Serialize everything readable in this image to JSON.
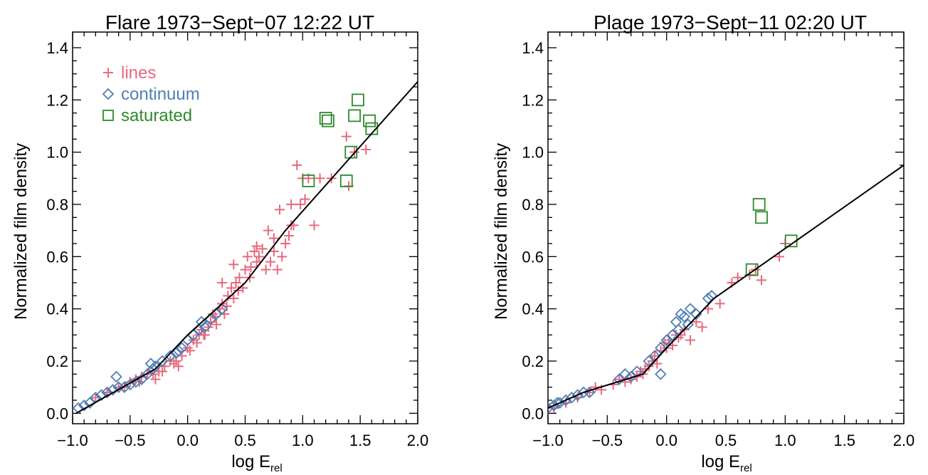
{
  "colors": {
    "lines": "#e8697d",
    "continuum": "#4f7fb5",
    "saturated": "#2e8b2e",
    "fit": "#000000"
  },
  "chart_data": [
    {
      "type": "scatter",
      "title": "Flare 1973−Sept−07 12:22 UT",
      "xlabel_main": "log E",
      "xlabel_sub": "rel",
      "ylabel": "Normalized film density",
      "xlim": [
        -1.0,
        2.0
      ],
      "ylim": [
        -0.04,
        1.46
      ],
      "xticks": [
        -1.0,
        -0.5,
        0.0,
        0.5,
        1.0,
        1.5,
        2.0
      ],
      "xtick_labels": [
        "−1.0",
        "−0.5",
        "0.0",
        "0.5",
        "1.0",
        "1.5",
        "2.0"
      ],
      "yticks": [
        0.0,
        0.2,
        0.4,
        0.6,
        0.8,
        1.0,
        1.2,
        1.4
      ],
      "ytick_labels": [
        "0.0",
        "0.2",
        "0.4",
        "0.6",
        "0.8",
        "1.0",
        "1.2",
        "1.4"
      ],
      "legend": {
        "placement": "top-left",
        "entries": [
          "lines",
          "continuum",
          "saturated"
        ]
      },
      "fit_line": {
        "x": [
          -0.97,
          -0.28,
          0.0,
          0.5,
          0.85,
          2.0
        ],
        "y": [
          0.0,
          0.17,
          0.3,
          0.5,
          0.7,
          1.27
        ]
      },
      "series": [
        {
          "name": "lines",
          "marker": "plus",
          "x": [
            -0.8,
            -0.7,
            -0.6,
            -0.5,
            -0.45,
            -0.4,
            -0.35,
            -0.3,
            -0.25,
            -0.2,
            -0.15,
            -0.1,
            -0.05,
            0.0,
            0.05,
            0.1,
            0.12,
            0.15,
            0.18,
            0.2,
            0.22,
            0.25,
            0.28,
            0.3,
            0.32,
            0.35,
            0.38,
            0.4,
            0.42,
            0.45,
            0.48,
            0.5,
            0.52,
            0.55,
            0.58,
            0.6,
            0.62,
            0.65,
            0.68,
            0.7,
            0.72,
            0.75,
            0.78,
            0.8,
            0.82,
            0.85,
            0.88,
            0.9,
            0.92,
            0.95,
            0.98,
            1.0,
            1.02,
            1.05,
            1.1,
            1.15,
            1.25,
            1.38,
            1.4,
            1.45,
            1.55,
            -0.55,
            -0.42,
            -0.28,
            -0.22,
            -0.12,
            -0.08,
            0.02,
            0.08,
            0.14,
            0.24,
            0.34,
            0.44,
            0.54,
            0.3,
            0.4,
            0.6,
            0.75,
            0.9
          ],
          "y": [
            0.06,
            0.08,
            0.1,
            0.12,
            0.13,
            0.14,
            0.15,
            0.15,
            0.16,
            0.18,
            0.2,
            0.2,
            0.22,
            0.25,
            0.28,
            0.3,
            0.32,
            0.3,
            0.33,
            0.35,
            0.38,
            0.34,
            0.4,
            0.42,
            0.38,
            0.45,
            0.48,
            0.44,
            0.5,
            0.52,
            0.48,
            0.55,
            0.6,
            0.56,
            0.62,
            0.58,
            0.6,
            0.63,
            0.55,
            0.7,
            0.58,
            0.62,
            0.55,
            0.78,
            0.6,
            0.65,
            0.68,
            0.72,
            0.72,
            0.95,
            0.8,
            0.9,
            0.82,
            0.9,
            0.72,
            0.9,
            0.9,
            1.06,
            0.87,
            1.0,
            1.01,
            0.1,
            0.12,
            0.13,
            0.16,
            0.19,
            0.18,
            0.24,
            0.27,
            0.3,
            0.37,
            0.41,
            0.47,
            0.52,
            0.5,
            0.57,
            0.64,
            0.67,
            0.8
          ]
        },
        {
          "name": "continuum",
          "marker": "diamond",
          "x": [
            -0.95,
            -0.9,
            -0.85,
            -0.8,
            -0.75,
            -0.7,
            -0.65,
            -0.6,
            -0.55,
            -0.5,
            -0.45,
            -0.4,
            -0.35,
            -0.3,
            -0.28,
            -0.22,
            -0.15,
            -0.1,
            -0.05,
            0.0,
            0.05,
            0.1,
            0.15,
            0.2,
            0.25,
            0.3,
            -0.62,
            -0.32,
            -0.08,
            0.12
          ],
          "y": [
            0.02,
            0.03,
            0.04,
            0.06,
            0.07,
            0.08,
            0.09,
            0.1,
            0.1,
            0.11,
            0.12,
            0.13,
            0.15,
            0.17,
            0.18,
            0.2,
            0.22,
            0.23,
            0.25,
            0.28,
            0.3,
            0.32,
            0.33,
            0.36,
            0.38,
            0.4,
            0.14,
            0.19,
            0.24,
            0.35
          ]
        },
        {
          "name": "saturated",
          "marker": "square",
          "x": [
            1.05,
            1.2,
            1.22,
            1.38,
            1.42,
            1.45,
            1.48,
            1.58,
            1.6
          ],
          "y": [
            0.89,
            1.13,
            1.12,
            0.89,
            1.0,
            1.14,
            1.2,
            1.12,
            1.09
          ]
        }
      ]
    },
    {
      "type": "scatter",
      "title": "Plage 1973−Sept−11 02:20 UT",
      "xlabel_main": "log E",
      "xlabel_sub": "rel",
      "ylabel": "Normalized film density",
      "xlim": [
        -1.0,
        2.0
      ],
      "ylim": [
        -0.04,
        1.46
      ],
      "xticks": [
        -1.0,
        -0.5,
        0.0,
        0.5,
        1.0,
        1.5,
        2.0
      ],
      "xtick_labels": [
        "−1.0",
        "−0.5",
        "0.0",
        "0.5",
        "1.0",
        "1.5",
        "2.0"
      ],
      "yticks": [
        0.0,
        0.2,
        0.4,
        0.6,
        0.8,
        1.0,
        1.2,
        1.4
      ],
      "ytick_labels": [
        "0.0",
        "0.2",
        "0.4",
        "0.6",
        "0.8",
        "1.0",
        "1.2",
        "1.4"
      ],
      "legend": null,
      "fit_line": {
        "x": [
          -1.0,
          -0.7,
          -0.2,
          0.0,
          0.4,
          2.0
        ],
        "y": [
          0.02,
          0.08,
          0.15,
          0.25,
          0.44,
          0.95
        ]
      },
      "series": [
        {
          "name": "lines",
          "marker": "plus",
          "x": [
            -0.95,
            -0.85,
            -0.75,
            -0.65,
            -0.55,
            -0.45,
            -0.35,
            -0.3,
            -0.25,
            -0.2,
            -0.18,
            -0.15,
            -0.12,
            -0.1,
            -0.08,
            -0.05,
            0.0,
            0.02,
            0.05,
            0.08,
            0.1,
            0.15,
            0.2,
            0.25,
            0.3,
            0.35,
            0.45,
            0.55,
            0.6,
            0.7,
            0.75,
            0.8,
            0.95,
            1.0,
            -0.6,
            -0.4,
            -0.22,
            -0.02,
            0.12
          ],
          "y": [
            0.02,
            0.04,
            0.06,
            0.08,
            0.09,
            0.11,
            0.12,
            0.13,
            0.14,
            0.15,
            0.17,
            0.18,
            0.2,
            0.22,
            0.19,
            0.24,
            0.25,
            0.28,
            0.26,
            0.3,
            0.29,
            0.32,
            0.28,
            0.35,
            0.33,
            0.4,
            0.42,
            0.5,
            0.52,
            0.53,
            0.55,
            0.51,
            0.6,
            0.65,
            0.1,
            0.13,
            0.16,
            0.27,
            0.3
          ]
        },
        {
          "name": "continuum",
          "marker": "diamond",
          "x": [
            -1.0,
            -0.95,
            -0.9,
            -0.85,
            -0.8,
            -0.75,
            -0.7,
            -0.65,
            -0.4,
            -0.35,
            -0.3,
            -0.25,
            -0.15,
            -0.1,
            -0.05,
            0.0,
            0.05,
            0.1,
            0.15,
            0.2,
            0.25,
            0.35,
            0.38,
            -0.05,
            0.08,
            0.12,
            0.18,
            -0.92
          ],
          "y": [
            0.02,
            0.03,
            0.04,
            0.05,
            0.06,
            0.07,
            0.08,
            0.08,
            0.13,
            0.15,
            0.14,
            0.16,
            0.2,
            0.22,
            0.25,
            0.28,
            0.3,
            0.32,
            0.37,
            0.4,
            0.38,
            0.44,
            0.45,
            0.15,
            0.35,
            0.38,
            0.34,
            0.04
          ]
        },
        {
          "name": "saturated",
          "marker": "square",
          "x": [
            0.72,
            0.78,
            0.8,
            1.05
          ],
          "y": [
            0.55,
            0.8,
            0.75,
            0.66
          ]
        }
      ]
    }
  ]
}
